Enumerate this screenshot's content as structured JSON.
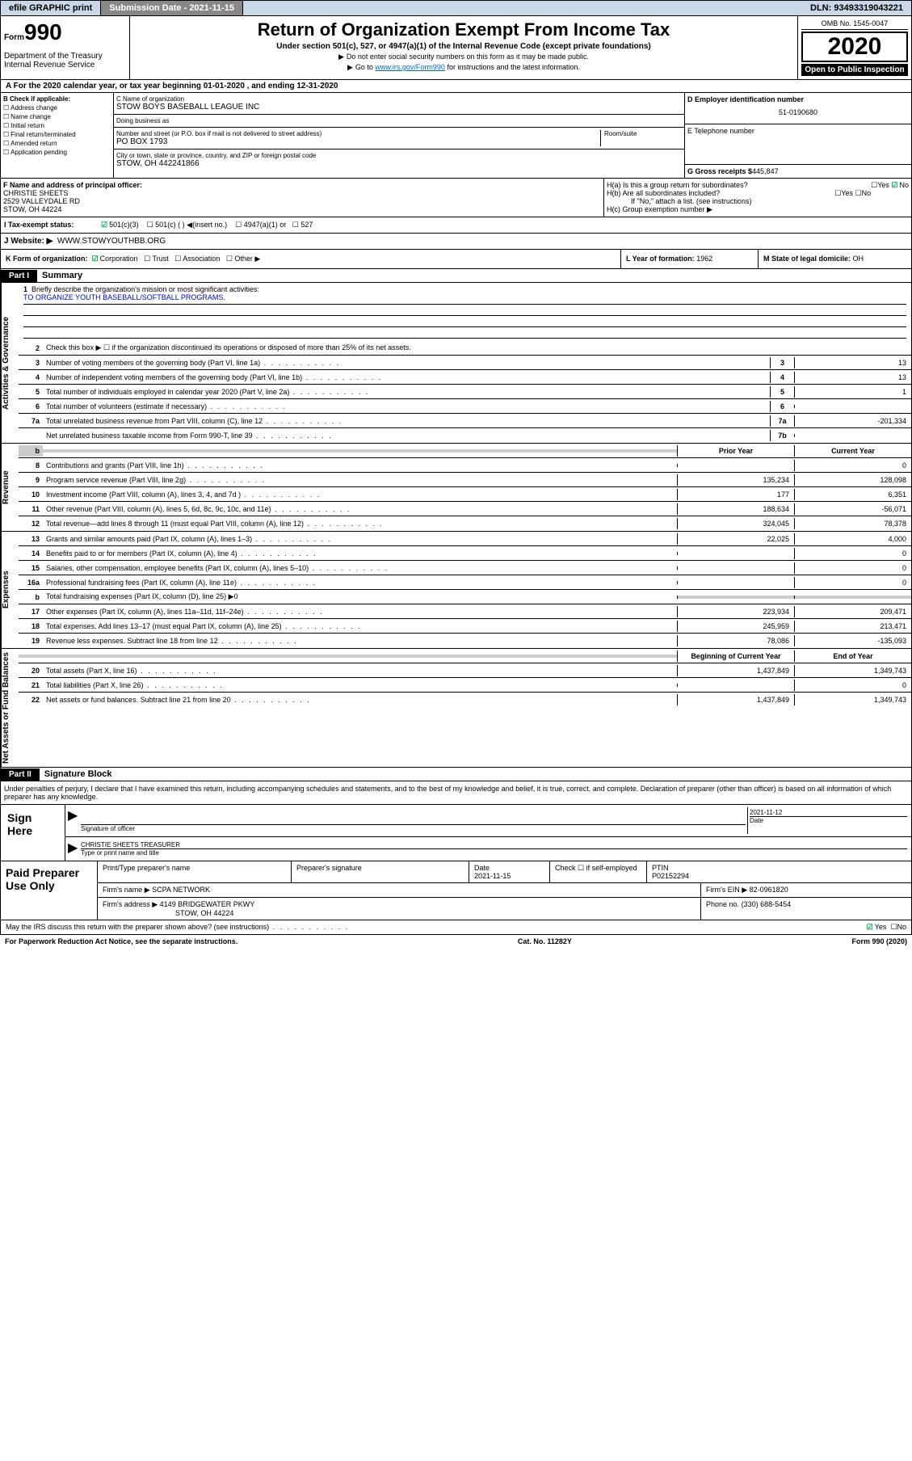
{
  "topbar": {
    "efile": "efile GRAPHIC print",
    "submission_label": "Submission Date - 2021-11-15",
    "dln": "DLN: 93493319043221"
  },
  "header": {
    "form_label": "Form",
    "form_num": "990",
    "dept": "Department of the Treasury\nInternal Revenue Service",
    "title": "Return of Organization Exempt From Income Tax",
    "subtitle": "Under section 501(c), 527, or 4947(a)(1) of the Internal Revenue Code (except private foundations)",
    "notice1": "Do not enter social security numbers on this form as it may be made public.",
    "notice2_pre": "Go to ",
    "notice2_link": "www.irs.gov/Form990",
    "notice2_post": " for instructions and the latest information.",
    "omb": "OMB No. 1545-0047",
    "year": "2020",
    "inspection": "Open to Public Inspection"
  },
  "tax_year": "For the 2020 calendar year, or tax year beginning 01-01-2020    , and ending 12-31-2020",
  "box_b": {
    "label": "B Check if applicable:",
    "items": [
      "Address change",
      "Name change",
      "Initial return",
      "Final return/terminated",
      "Amended return",
      "Application pending"
    ]
  },
  "box_c": {
    "name_label": "C Name of organization",
    "name": "STOW BOYS BASEBALL LEAGUE INC",
    "dba_label": "Doing business as",
    "dba": "",
    "street_label": "Number and street (or P.O. box if mail is not delivered to street address)",
    "street": "PO BOX 1793",
    "room_label": "Room/suite",
    "city_label": "City or town, state or province, country, and ZIP or foreign postal code",
    "city": "STOW, OH  442241866"
  },
  "box_d": {
    "label": "D Employer identification number",
    "value": "51-0190680"
  },
  "box_e": {
    "label": "E Telephone number",
    "value": ""
  },
  "box_g": {
    "label": "G Gross receipts $",
    "value": "445,847"
  },
  "box_f": {
    "label": "F  Name and address of principal officer:",
    "name": "CHRISTIE SHEETS",
    "addr1": "2529 VALLEYDALE RD",
    "addr2": "STOW, OH  44224"
  },
  "box_h": {
    "ha": "H(a)  Is this a group return for subordinates?",
    "ha_yes": "Yes",
    "ha_no": "No",
    "hb": "H(b)  Are all subordinates included?",
    "hb_yes": "Yes",
    "hb_no": "No",
    "hb_note": "If \"No,\" attach a list. (see instructions)",
    "hc": "H(c)  Group exemption number ▶"
  },
  "box_i": {
    "label": "I   Tax-exempt status:",
    "opts": [
      "501(c)(3)",
      "501(c) (  ) ◀(insert no.)",
      "4947(a)(1) or",
      "527"
    ]
  },
  "box_j": {
    "label": "J   Website: ▶",
    "value": "WWW.STOWYOUTHBB.ORG"
  },
  "box_k": {
    "label": "K Form of organization:",
    "opts": [
      "Corporation",
      "Trust",
      "Association",
      "Other ▶"
    ]
  },
  "box_l": {
    "label": "L Year of formation:",
    "value": "1962"
  },
  "box_m": {
    "label": "M State of legal domicile:",
    "value": "OH"
  },
  "part1": {
    "hdr": "Part I",
    "title": "Summary"
  },
  "summary": {
    "l1_label": "Briefly describe the organization's mission or most significant activities:",
    "l1_text": "TO ORGANIZE YOUTH BASEBALL/SOFTBALL PROGRAMS.",
    "l2": "Check this box ▶ ☐  if the organization discontinued its operations or disposed of more than 25% of its net assets.",
    "l3": "Number of voting members of the governing body (Part VI, line 1a)",
    "l3v": "13",
    "l4": "Number of independent voting members of the governing body (Part VI, line 1b)",
    "l4v": "13",
    "l5": "Total number of individuals employed in calendar year 2020 (Part V, line 2a)",
    "l5v": "1",
    "l6": "Total number of volunteers (estimate if necessary)",
    "l6v": "",
    "l7a": "Total unrelated business revenue from Part VIII, column (C), line 12",
    "l7av": "-201,334",
    "l7b": "Net unrelated business taxable income from Form 990-T, line 39",
    "l7bv": ""
  },
  "revenue": {
    "hdr_prior": "Prior Year",
    "hdr_curr": "Current Year",
    "rows": [
      {
        "n": "8",
        "t": "Contributions and grants (Part VIII, line 1h)",
        "p": "",
        "c": "0"
      },
      {
        "n": "9",
        "t": "Program service revenue (Part VIII, line 2g)",
        "p": "135,234",
        "c": "128,098"
      },
      {
        "n": "10",
        "t": "Investment income (Part VIII, column (A), lines 3, 4, and 7d )",
        "p": "177",
        "c": "6,351"
      },
      {
        "n": "11",
        "t": "Other revenue (Part VIII, column (A), lines 5, 6d, 8c, 9c, 10c, and 11e)",
        "p": "188,634",
        "c": "-56,071"
      },
      {
        "n": "12",
        "t": "Total revenue—add lines 8 through 11 (must equal Part VIII, column (A), line 12)",
        "p": "324,045",
        "c": "78,378"
      }
    ]
  },
  "expenses": {
    "rows": [
      {
        "n": "13",
        "t": "Grants and similar amounts paid (Part IX, column (A), lines 1–3)",
        "p": "22,025",
        "c": "4,000"
      },
      {
        "n": "14",
        "t": "Benefits paid to or for members (Part IX, column (A), line 4)",
        "p": "",
        "c": "0"
      },
      {
        "n": "15",
        "t": "Salaries, other compensation, employee benefits (Part IX, column (A), lines 5–10)",
        "p": "",
        "c": "0"
      },
      {
        "n": "16a",
        "t": "Professional fundraising fees (Part IX, column (A), line 11e)",
        "p": "",
        "c": "0"
      },
      {
        "n": "b",
        "t": "Total fundraising expenses (Part IX, column (D), line 25) ▶0",
        "shade": true
      },
      {
        "n": "17",
        "t": "Other expenses (Part IX, column (A), lines 11a–11d, 11f–24e)",
        "p": "223,934",
        "c": "209,471"
      },
      {
        "n": "18",
        "t": "Total expenses. Add lines 13–17 (must equal Part IX, column (A), line 25)",
        "p": "245,959",
        "c": "213,471"
      },
      {
        "n": "19",
        "t": "Revenue less expenses. Subtract line 18 from line 12",
        "p": "78,086",
        "c": "-135,093"
      }
    ]
  },
  "netassets": {
    "hdr_beg": "Beginning of Current Year",
    "hdr_end": "End of Year",
    "rows": [
      {
        "n": "20",
        "t": "Total assets (Part X, line 16)",
        "p": "1,437,849",
        "c": "1,349,743"
      },
      {
        "n": "21",
        "t": "Total liabilities (Part X, line 26)",
        "p": "",
        "c": "0"
      },
      {
        "n": "22",
        "t": "Net assets or fund balances. Subtract line 21 from line 20",
        "p": "1,437,849",
        "c": "1,349,743"
      }
    ]
  },
  "vtabs": {
    "gov": "Activities & Governance",
    "rev": "Revenue",
    "exp": "Expenses",
    "net": "Net Assets or Fund Balances"
  },
  "part2": {
    "hdr": "Part II",
    "title": "Signature Block"
  },
  "perjury": "Under penalties of perjury, I declare that I have examined this return, including accompanying schedules and statements, and to the best of my knowledge and belief, it is true, correct, and complete. Declaration of preparer (other than officer) is based on all information of which preparer has any knowledge.",
  "sign": {
    "label": "Sign Here",
    "sig_label": "Signature of officer",
    "date": "2021-11-12",
    "date_label": "Date",
    "name": "CHRISTIE SHEETS  TREASURER",
    "name_label": "Type or print name and title"
  },
  "prep": {
    "label": "Paid Preparer Use Only",
    "name_label": "Print/Type preparer's name",
    "sig_label": "Preparer's signature",
    "date_label": "Date",
    "date": "2021-11-15",
    "check_label": "Check ☐ if self-employed",
    "ptin_label": "PTIN",
    "ptin": "P02152294",
    "firm_label": "Firm's name     ▶",
    "firm": "SCPA NETWORK",
    "ein_label": "Firm's EIN ▶",
    "ein": "82-0961820",
    "addr_label": "Firm's address ▶",
    "addr1": "4149 BRIDGEWATER PKWY",
    "addr2": "STOW, OH  44224",
    "phone_label": "Phone no.",
    "phone": "(330) 688-5454"
  },
  "discuss": {
    "q": "May the IRS discuss this return with the preparer shown above? (see instructions)",
    "yes": "Yes",
    "no": "No"
  },
  "footer": {
    "pra": "For Paperwork Reduction Act Notice, see the separate instructions.",
    "cat": "Cat. No. 11282Y",
    "form": "Form 990 (2020)"
  }
}
